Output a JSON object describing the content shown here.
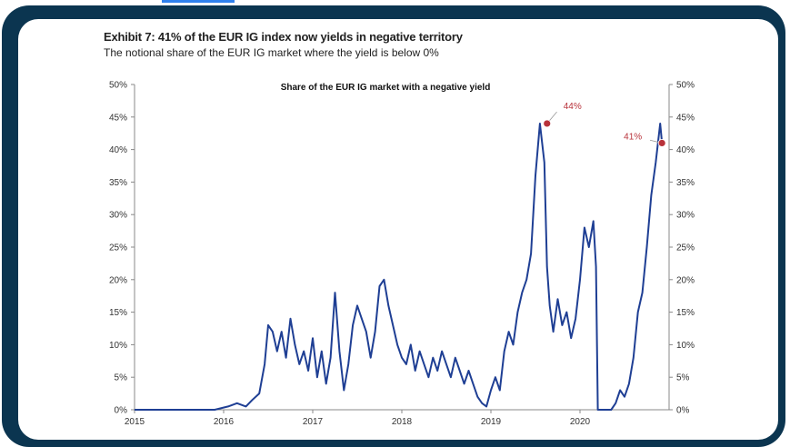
{
  "header": {
    "title": "Exhibit 7: 41% of the EUR IG index now yields in negative territory",
    "subtitle": "The notional share of the EUR IG market where the yield is below 0%"
  },
  "colors": {
    "frame": "#0b3550",
    "series": "#1f3f94",
    "annotation": "#b8323a"
  },
  "chart_data": {
    "type": "line",
    "title": "Share of the EUR IG market with a negative yield",
    "xlabel": "",
    "ylabel": "",
    "xlim": [
      2015.0,
      2021.0
    ],
    "ylim": [
      0,
      50
    ],
    "x_ticks": [
      "2015",
      "2016",
      "2017",
      "2018",
      "2019",
      "2020"
    ],
    "x_tick_values": [
      2015,
      2016,
      2017,
      2018,
      2019,
      2020
    ],
    "y_ticks_left": [
      "0%",
      "5%",
      "10%",
      "15%",
      "20%",
      "25%",
      "30%",
      "35%",
      "40%",
      "45%",
      "50%"
    ],
    "y_ticks_right": [
      "0%",
      "5%",
      "10%",
      "15%",
      "20%",
      "25%",
      "30%",
      "35%",
      "40%",
      "45%",
      "50%"
    ],
    "y_tick_values": [
      0,
      5,
      10,
      15,
      20,
      25,
      30,
      35,
      40,
      45,
      50
    ],
    "grid": false,
    "series": [
      {
        "x": [
          2015.0,
          2015.5,
          2015.9,
          2016.05,
          2016.15,
          2016.25,
          2016.32,
          2016.4,
          2016.46,
          2016.5,
          2016.55,
          2016.6,
          2016.65,
          2016.7,
          2016.75,
          2016.8,
          2016.85,
          2016.9,
          2016.95,
          2017.0,
          2017.05,
          2017.1,
          2017.15,
          2017.2,
          2017.25,
          2017.3,
          2017.35,
          2017.4,
          2017.45,
          2017.5,
          2017.55,
          2017.6,
          2017.65,
          2017.7,
          2017.75,
          2017.8,
          2017.85,
          2017.9,
          2017.95,
          2018.0,
          2018.05,
          2018.1,
          2018.15,
          2018.2,
          2018.25,
          2018.3,
          2018.35,
          2018.4,
          2018.45,
          2018.5,
          2018.55,
          2018.6,
          2018.65,
          2018.7,
          2018.75,
          2018.8,
          2018.85,
          2018.9,
          2018.95,
          2019.0,
          2019.05,
          2019.1,
          2019.15,
          2019.2,
          2019.25,
          2019.3,
          2019.35,
          2019.4,
          2019.45,
          2019.5,
          2019.55,
          2019.6,
          2019.63,
          2019.66,
          2019.7,
          2019.75,
          2019.8,
          2019.85,
          2019.9,
          2019.95,
          2020.0,
          2020.05,
          2020.1,
          2020.15,
          2020.18,
          2020.2,
          2020.25,
          2020.3,
          2020.35,
          2020.4,
          2020.45,
          2020.5,
          2020.55,
          2020.6,
          2020.65,
          2020.7,
          2020.75,
          2020.8,
          2020.85,
          2020.9,
          2020.92
        ],
        "y": [
          0,
          0,
          0,
          0.5,
          1,
          0.5,
          1.5,
          2.5,
          7,
          13,
          12,
          9,
          12,
          8,
          14,
          10,
          7,
          9,
          6,
          11,
          5,
          9,
          4,
          8,
          18,
          9,
          3,
          7,
          13,
          16,
          14,
          12,
          8,
          12,
          19,
          20,
          16,
          13,
          10,
          8,
          7,
          10,
          6,
          9,
          7,
          5,
          8,
          6,
          9,
          7,
          5,
          8,
          6,
          4,
          6,
          4,
          2,
          1,
          0.5,
          3,
          5,
          3,
          9,
          12,
          10,
          15,
          18,
          20,
          24,
          36,
          44,
          38,
          22,
          16,
          12,
          17,
          13,
          15,
          11,
          14,
          20,
          28,
          25,
          29,
          22,
          0,
          0,
          0,
          0,
          1,
          3,
          2,
          4,
          8,
          15,
          18,
          25,
          33,
          38,
          44,
          41
        ]
      }
    ],
    "annotations": [
      {
        "label": "44%",
        "x": 2019.63,
        "y": 44
      },
      {
        "label": "41%",
        "x": 2020.92,
        "y": 41
      }
    ]
  }
}
